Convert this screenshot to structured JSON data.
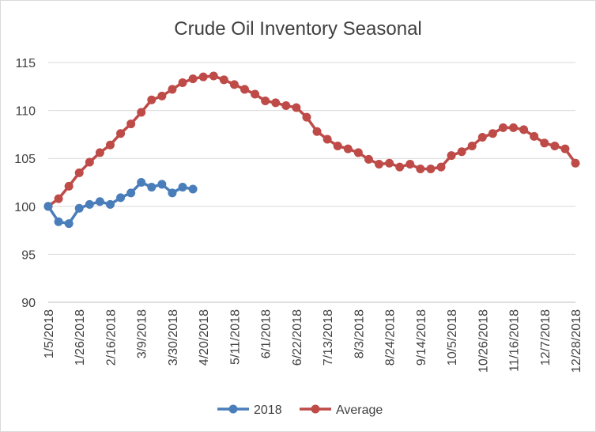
{
  "chart_data": {
    "type": "line",
    "title": "Crude Oil Inventory Seasonal",
    "xlabel": "",
    "ylabel": "",
    "ylim": [
      90,
      115
    ],
    "yticks": [
      90,
      95,
      100,
      105,
      110,
      115
    ],
    "grid": true,
    "legend_position": "bottom",
    "x_tick_labels": [
      "1/5/2018",
      "1/26/2018",
      "2/16/2018",
      "3/9/2018",
      "3/30/2018",
      "4/20/2018",
      "5/11/2018",
      "6/1/2018",
      "6/22/2018",
      "7/13/2018",
      "8/3/2018",
      "8/24/2018",
      "9/14/2018",
      "10/5/2018",
      "10/26/2018",
      "11/16/2018",
      "12/7/2018",
      "12/28/2018"
    ],
    "series": [
      {
        "name": "2018",
        "color": "#4a7ebb",
        "values": [
          100.0,
          98.4,
          98.2,
          99.8,
          100.2,
          100.5,
          100.2,
          100.9,
          101.4,
          102.5,
          102.0,
          102.3,
          101.4,
          102.0,
          101.8
        ]
      },
      {
        "name": "Average",
        "color": "#be4b48",
        "values": [
          100.0,
          100.8,
          102.1,
          103.5,
          104.6,
          105.6,
          106.4,
          107.6,
          108.6,
          109.8,
          111.1,
          111.5,
          112.2,
          112.9,
          113.3,
          113.5,
          113.6,
          113.2,
          112.7,
          112.2,
          111.7,
          111.0,
          110.8,
          110.5,
          110.3,
          109.3,
          107.8,
          107.0,
          106.3,
          106.0,
          105.6,
          104.9,
          104.4,
          104.5,
          104.1,
          104.4,
          103.9,
          103.9,
          104.1,
          105.3,
          105.7,
          106.3,
          107.2,
          107.6,
          108.2,
          108.2,
          108.0,
          107.3,
          106.6,
          106.3,
          106.0,
          104.5
        ]
      }
    ]
  }
}
